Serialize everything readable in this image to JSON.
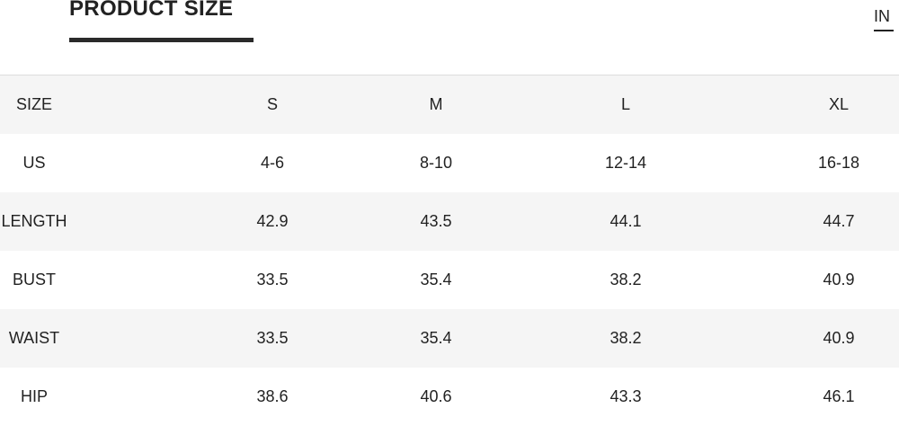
{
  "header": {
    "title": "PRODUCT SIZE",
    "unit": "IN"
  },
  "table": {
    "columns": [
      "SIZE",
      "S",
      "M",
      "L",
      "XL"
    ],
    "rows": [
      [
        "US",
        "4-6",
        "8-10",
        "12-14",
        "16-18"
      ],
      [
        "LENGTH",
        "42.9",
        "43.5",
        "44.1",
        "44.7"
      ],
      [
        "BUST",
        "33.5",
        "35.4",
        "38.2",
        "40.9"
      ],
      [
        "WAIST",
        "33.5",
        "35.4",
        "38.2",
        "40.9"
      ],
      [
        "HIP",
        "38.6",
        "40.6",
        "43.3",
        "46.1"
      ]
    ]
  }
}
